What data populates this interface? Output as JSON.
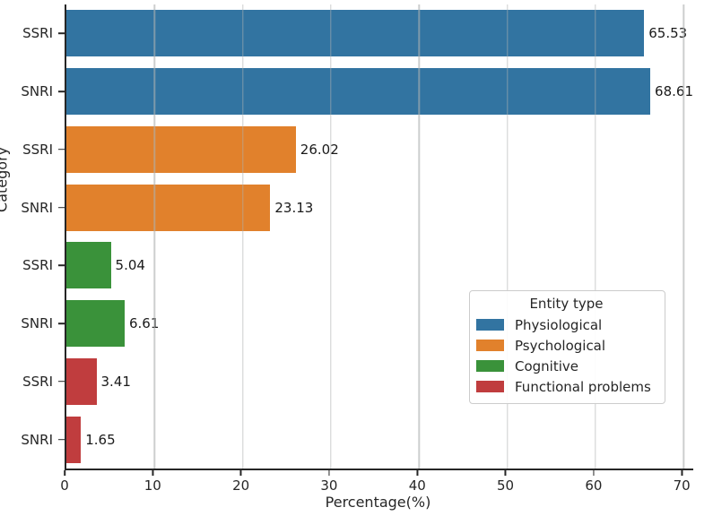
{
  "chart_data": {
    "type": "bar",
    "orientation": "horizontal",
    "title": "",
    "xlabel": "Percentage(%)",
    "ylabel": "Category",
    "xlim": [
      0,
      71.1
    ],
    "xticks": [
      0,
      10,
      20,
      30,
      40,
      50,
      60,
      70
    ],
    "grid": "vertical-on",
    "legend": {
      "title": "Entity type",
      "position": "center-right",
      "entries": [
        {
          "label": "Physiological",
          "color": "#3274a1"
        },
        {
          "label": "Psychological",
          "color": "#e1812c"
        },
        {
          "label": "Cognitive",
          "color": "#3a923a"
        },
        {
          "label": "Functional problems",
          "color": "#c03d3e"
        }
      ]
    },
    "bars": [
      {
        "category": "SSRI",
        "group": "Physiological",
        "value": 65.53,
        "value_label": "65.53",
        "color": "#3274a1"
      },
      {
        "category": "SNRI",
        "group": "Physiological",
        "value": 68.61,
        "value_label": "68.61",
        "color": "#3274a1"
      },
      {
        "category": "SSRI",
        "group": "Psychological",
        "value": 26.02,
        "value_label": "26.02",
        "color": "#e1812c"
      },
      {
        "category": "SNRI",
        "group": "Psychological",
        "value": 23.13,
        "value_label": "23.13",
        "color": "#e1812c"
      },
      {
        "category": "SSRI",
        "group": "Cognitive",
        "value": 5.04,
        "value_label": "5.04",
        "color": "#3a923a"
      },
      {
        "category": "SNRI",
        "group": "Cognitive",
        "value": 6.61,
        "value_label": "6.61",
        "color": "#3a923a"
      },
      {
        "category": "SSRI",
        "group": "Functional problems",
        "value": 3.41,
        "value_label": "3.41",
        "color": "#c03d3e"
      },
      {
        "category": "SNRI",
        "group": "Functional problems",
        "value": 1.65,
        "value_label": "1.65",
        "color": "#c03d3e"
      }
    ],
    "colors": {
      "grid": "#b0b0b0",
      "spine": "#262626",
      "text": "#262626",
      "value_label_text": "#1a1a1a"
    }
  }
}
